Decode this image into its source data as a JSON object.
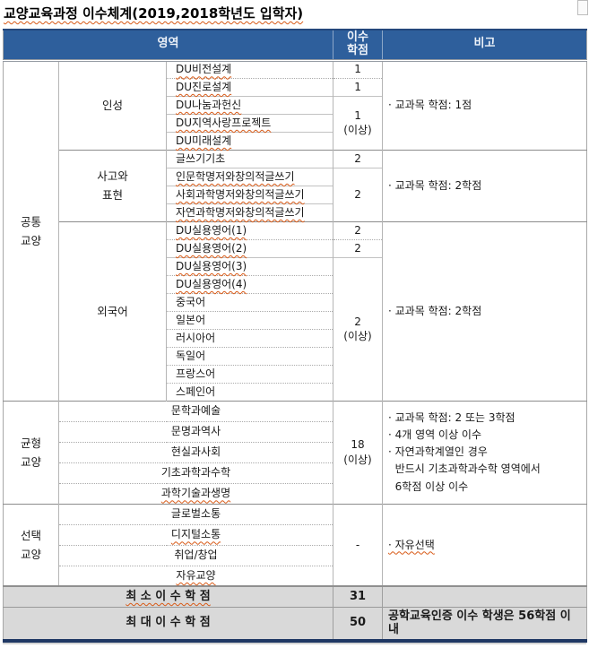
{
  "title": "교양교육과정 이수체계(2019,2018학년도 입학자)",
  "header": {
    "area": "영역",
    "credits": "이수\n학점",
    "remarks": "비고"
  },
  "common": {
    "group": "공통\n교양",
    "character": {
      "label": "인성",
      "courses": [
        "DU비전설계",
        "DU진로설계",
        "DU나눔과헌신",
        "DU지역사랑프로젝트",
        "DU미래설계"
      ],
      "credit_1": "1",
      "credit_2": "1",
      "credit_3_5": "1\n(이상)",
      "remark": "· 교과목 학점: 1점"
    },
    "thinking": {
      "label": "사고와\n표현",
      "courses": [
        "글쓰기기초",
        "인문학명저와창의적글쓰기",
        "사회과학명저와창의적글쓰기",
        "자연과학명저와창의적글쓰기"
      ],
      "credit_1": "2",
      "credit_2_4": "2",
      "remark": "· 교과목 학점: 2학점"
    },
    "foreign": {
      "label": "외국어",
      "courses": [
        "DU실용영어(1)",
        "DU실용영어(2)",
        "DU실용영어(3)",
        "DU실용영어(4)",
        "중국어",
        "일본어",
        "러시아어",
        "독일어",
        "프랑스어",
        "스페인어"
      ],
      "credit_1": "2",
      "credit_2": "2",
      "credit_3_10": "2\n(이상)",
      "remark": "· 교과목 학점: 2학점"
    }
  },
  "balanced": {
    "group": "균형\n교양",
    "courses": [
      "문학과예술",
      "문명과역사",
      "현실과사회",
      "기초과학과수학",
      "과학기술과생명"
    ],
    "credit": "18\n(이상)",
    "remark": "· 교과목 학점: 2 또는 3학점\n· 4개 영역 이상 이수\n· 자연과학계열인 경우\n  반드시 기초과학과수학 영역에서\n  6학점 이상 이수"
  },
  "elective": {
    "group": "선택\n교양",
    "courses": [
      "글로벌소통",
      "디지털소통",
      "취업/창업",
      "자유교양"
    ],
    "credit": "-",
    "remark": "· 자유선택"
  },
  "summary": {
    "min_label": "최 소 이 수 학 점",
    "min_credit": "31",
    "min_remark": "",
    "max_label": "최 대 이 수 학 점",
    "max_credit": "50",
    "max_remark": "공학교육인증 이수 학생은 56학점 이내"
  },
  "colors": {
    "header_bg": "#2E5F9C",
    "header_text": "#EDF2F9",
    "accent_bar": "#1F3864",
    "summary_bg": "#D9D9D9",
    "spell_mark": "#D85A17"
  }
}
